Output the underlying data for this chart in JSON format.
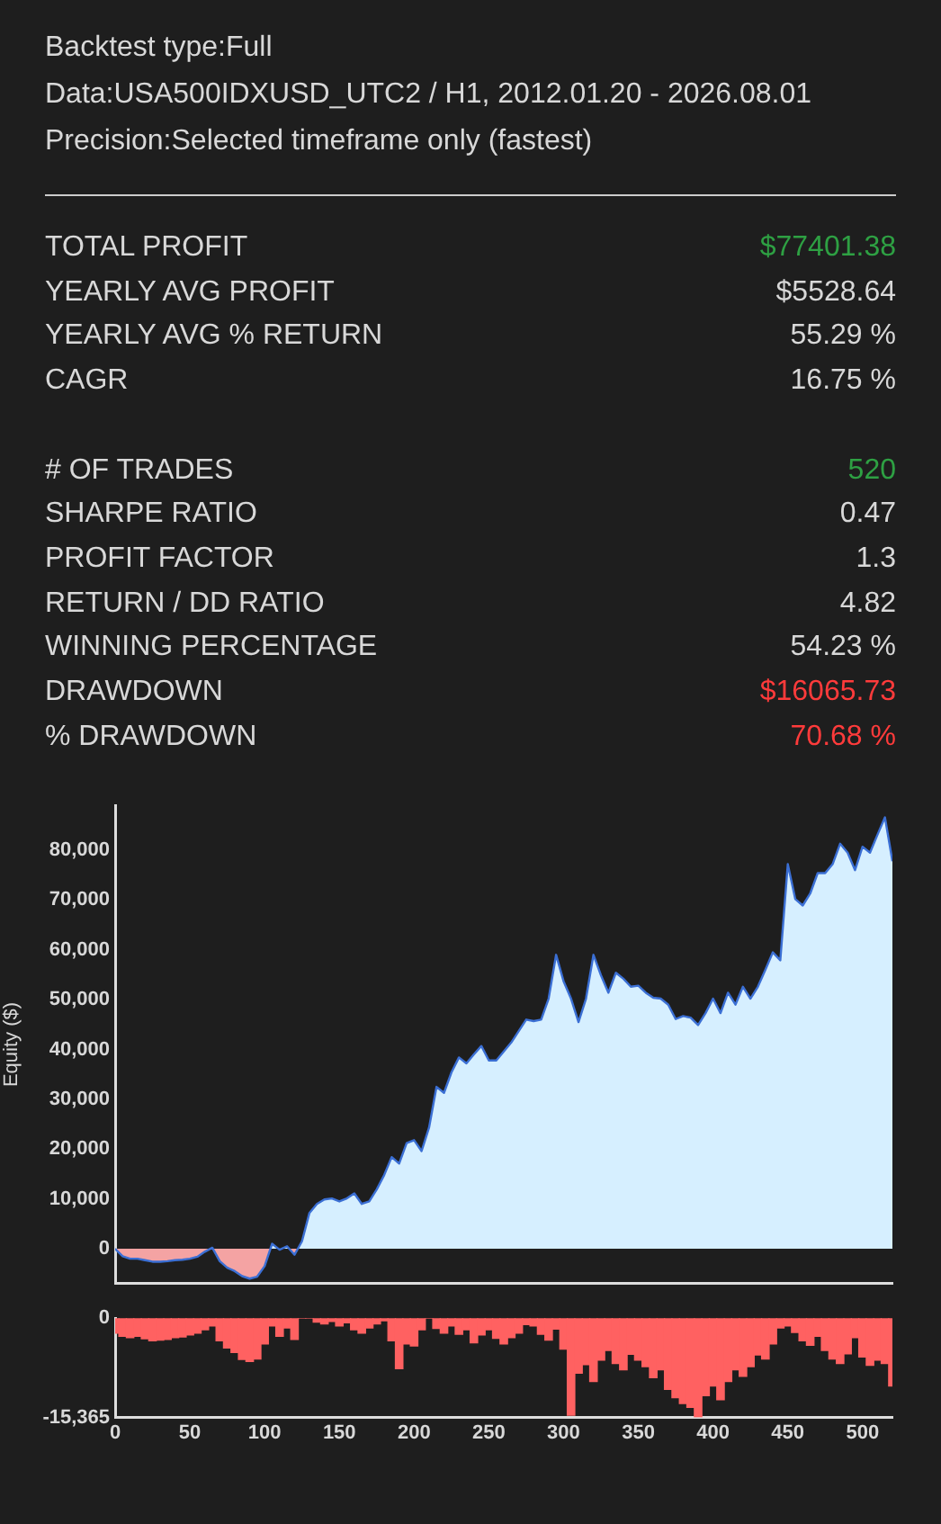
{
  "chart_data": [
    {
      "type": "other",
      "annotations": [
        "Backtest type:Full",
        "Data:USA500IDXUSD_UTC2 / H1, 2012.01.20 - 2026.08.01",
        "Precision:Selected timeframe only (fastest)"
      ],
      "categories": [
        "TOTAL PROFIT",
        "YEARLY AVG PROFIT",
        "YEARLY AVG % RETURN",
        "CAGR",
        null,
        "# OF TRADES",
        "SHARPE RATIO",
        "PROFIT FACTOR",
        "RETURN / DD RATIO",
        "WINNING PERCENTAGE",
        "DRAWDOWN",
        "% DRAWDOWN"
      ],
      "value_labels": [
        "$77401.38",
        "$5528.64",
        "55.29 %",
        "16.75 %",
        null,
        "520",
        "0.47",
        "1.3",
        "4.82",
        "54.23 %",
        "$16065.73",
        "70.68 %"
      ],
      "colors": [
        "#2ea043",
        "#d8d8d8",
        "#d8d8d8",
        "#d8d8d8",
        "#d8d8d8",
        "#2ea043",
        "#d8d8d8",
        "#d8d8d8",
        "#d8d8d8",
        "#d8d8d8",
        "#ff3b3b",
        "#ff3b3b"
      ]
    },
    {
      "type": "area",
      "ylabel": "Equity ($)",
      "color": "#d6efff",
      "xlim": [
        0,
        520
      ],
      "ylim": [
        -7000,
        89000
      ],
      "tick_labels": "y",
      "yticks": [
        {
          "value": 0,
          "label": "0"
        },
        {
          "value": 10000,
          "label": "10,000"
        },
        {
          "value": 20000,
          "label": "20,000"
        },
        {
          "value": 30000,
          "label": "30,000"
        },
        {
          "value": 40000,
          "label": "40,000"
        },
        {
          "value": 50000,
          "label": "50,000"
        },
        {
          "value": 60000,
          "label": "60,000"
        },
        {
          "value": 70000,
          "label": "70,000"
        },
        {
          "value": 80000,
          "label": "80,000"
        }
      ],
      "x": [
        0,
        5,
        10,
        15,
        20,
        25,
        30,
        35,
        40,
        45,
        50,
        55,
        60,
        65,
        70,
        75,
        80,
        85,
        90,
        95,
        100,
        105,
        110,
        115,
        120,
        125,
        130,
        135,
        140,
        145,
        150,
        155,
        160,
        165,
        170,
        175,
        180,
        185,
        190,
        195,
        200,
        205,
        210,
        215,
        220,
        225,
        230,
        235,
        240,
        245,
        250,
        255,
        260,
        265,
        270,
        275,
        280,
        285,
        290,
        295,
        300,
        305,
        310,
        315,
        320,
        325,
        330,
        335,
        340,
        345,
        350,
        355,
        360,
        365,
        370,
        375,
        380,
        385,
        390,
        395,
        400,
        405,
        410,
        415,
        420,
        425,
        430,
        435,
        440,
        445,
        450,
        455,
        460,
        465,
        470,
        475,
        480,
        485,
        490,
        495,
        500,
        505,
        510,
        515,
        520
      ],
      "values": [
        0,
        -1500,
        -2000,
        -2000,
        -2300,
        -2600,
        -2600,
        -2500,
        -2300,
        -2200,
        -2000,
        -1600,
        -600,
        200,
        -2500,
        -3800,
        -4500,
        -5500,
        -6000,
        -5600,
        -3500,
        1000,
        -200,
        500,
        -1200,
        1500,
        7200,
        9000,
        9900,
        10100,
        9500,
        10100,
        11100,
        9000,
        9500,
        11900,
        14800,
        18400,
        17100,
        21200,
        21800,
        19600,
        24300,
        32500,
        31300,
        35400,
        38400,
        37200,
        39000,
        40700,
        37800,
        37800,
        39600,
        41400,
        43700,
        46000,
        45700,
        46000,
        50200,
        59000,
        53700,
        50200,
        45500,
        50200,
        59000,
        54900,
        51400,
        55400,
        54200,
        52600,
        52800,
        51400,
        50400,
        50200,
        49000,
        46100,
        46700,
        46400,
        44900,
        47300,
        50200,
        47300,
        51400,
        49000,
        52600,
        50200,
        52600,
        56000,
        59500,
        57900,
        77200,
        70200,
        68900,
        71300,
        75400,
        75400,
        77200,
        81300,
        79500,
        76000,
        80700,
        79500,
        83100,
        86600,
        77800
      ]
    },
    {
      "type": "bar",
      "color": "#ff6161",
      "xlim": [
        0,
        520
      ],
      "ylim": [
        -15365,
        0
      ],
      "xticks": [
        0,
        50,
        100,
        150,
        200,
        250,
        300,
        350,
        400,
        450,
        500
      ],
      "yticks": [
        {
          "value": 0,
          "label": "0"
        },
        {
          "value": -15365,
          "label": "-15,365"
        }
      ],
      "x": [
        0,
        5,
        10,
        15,
        20,
        25,
        30,
        35,
        40,
        45,
        50,
        55,
        60,
        65,
        70,
        75,
        80,
        85,
        90,
        95,
        100,
        105,
        110,
        115,
        120,
        125,
        130,
        135,
        140,
        145,
        150,
        155,
        160,
        165,
        170,
        175,
        180,
        185,
        190,
        195,
        200,
        205,
        210,
        215,
        220,
        225,
        230,
        235,
        240,
        245,
        250,
        255,
        260,
        265,
        270,
        275,
        280,
        285,
        290,
        295,
        300,
        305,
        310,
        315,
        320,
        325,
        330,
        335,
        340,
        345,
        350,
        355,
        360,
        365,
        370,
        375,
        380,
        385,
        390,
        395,
        400,
        405,
        410,
        415,
        420,
        425,
        430,
        435,
        440,
        445,
        450,
        455,
        460,
        465,
        470,
        475,
        480,
        485,
        490,
        495,
        500,
        505,
        510,
        515,
        520
      ],
      "values": [
        -2300,
        -2800,
        -3000,
        -2800,
        -3200,
        -3500,
        -3400,
        -3300,
        -3000,
        -2900,
        -2600,
        -2300,
        -1800,
        -1200,
        -3500,
        -4600,
        -5300,
        -6400,
        -6700,
        -6300,
        -4000,
        -1200,
        -2800,
        -1500,
        -3300,
        0,
        0,
        -600,
        -900,
        -500,
        -1200,
        -700,
        -1800,
        -2300,
        -1500,
        -900,
        -400,
        -3500,
        -7800,
        -4000,
        -4300,
        -1800,
        0,
        -1600,
        -2300,
        -1200,
        -2500,
        -1800,
        -3800,
        -2600,
        -1800,
        -3100,
        -4000,
        -3000,
        -2300,
        -1000,
        -1200,
        -2500,
        -3400,
        -1700,
        -4800,
        -15000,
        -8500,
        -7200,
        -9800,
        -6500,
        -5000,
        -7000,
        -8000,
        -5600,
        -6500,
        -7500,
        -9200,
        -8000,
        -11000,
        -12300,
        -13200,
        -13800,
        -15300,
        -12000,
        -10500,
        -12600,
        -9800,
        -8000,
        -9000,
        -7500,
        -5700,
        -6300,
        -4000,
        -1500,
        -1200,
        -2200,
        -3500,
        -4200,
        -2800,
        -5000,
        -6300,
        -7000,
        -5500,
        -3000,
        -6000,
        -7300,
        -6500,
        -7000,
        -10500
      ]
    }
  ]
}
